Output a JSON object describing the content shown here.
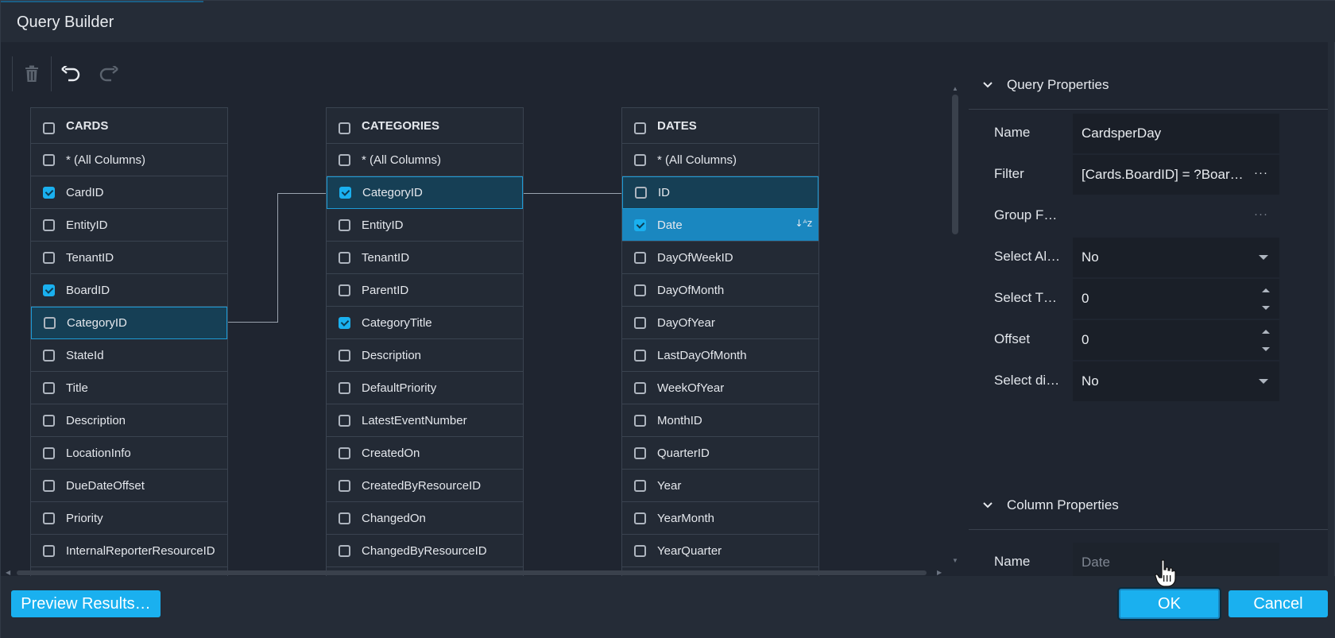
{
  "window": {
    "title": "Query Builder"
  },
  "toolbar": {
    "delete_icon": "trash-icon",
    "undo_icon": "undo-icon",
    "redo_icon": "redo-icon"
  },
  "tables": [
    {
      "name": "CARDS",
      "header_checked": false,
      "rows": [
        {
          "label": "* (All Columns)",
          "checked": false,
          "state": ""
        },
        {
          "label": "CardID",
          "checked": true,
          "state": ""
        },
        {
          "label": "EntityID",
          "checked": false,
          "state": ""
        },
        {
          "label": "TenantID",
          "checked": false,
          "state": ""
        },
        {
          "label": "BoardID",
          "checked": true,
          "state": ""
        },
        {
          "label": "CategoryID",
          "checked": false,
          "state": "selected"
        },
        {
          "label": "StateId",
          "checked": false,
          "state": ""
        },
        {
          "label": "Title",
          "checked": false,
          "state": ""
        },
        {
          "label": "Description",
          "checked": false,
          "state": ""
        },
        {
          "label": "LocationInfo",
          "checked": false,
          "state": ""
        },
        {
          "label": "DueDateOffset",
          "checked": false,
          "state": ""
        },
        {
          "label": "Priority",
          "checked": false,
          "state": ""
        },
        {
          "label": "InternalReporterResourceID",
          "checked": false,
          "state": ""
        }
      ]
    },
    {
      "name": "CATEGORIES",
      "header_checked": false,
      "rows": [
        {
          "label": "* (All Columns)",
          "checked": false,
          "state": ""
        },
        {
          "label": "CategoryID",
          "checked": true,
          "state": "selected"
        },
        {
          "label": "EntityID",
          "checked": false,
          "state": ""
        },
        {
          "label": "TenantID",
          "checked": false,
          "state": ""
        },
        {
          "label": "ParentID",
          "checked": false,
          "state": ""
        },
        {
          "label": "CategoryTitle",
          "checked": true,
          "state": ""
        },
        {
          "label": "Description",
          "checked": false,
          "state": ""
        },
        {
          "label": "DefaultPriority",
          "checked": false,
          "state": ""
        },
        {
          "label": "LatestEventNumber",
          "checked": false,
          "state": ""
        },
        {
          "label": "CreatedOn",
          "checked": false,
          "state": ""
        },
        {
          "label": "CreatedByResourceID",
          "checked": false,
          "state": ""
        },
        {
          "label": "ChangedOn",
          "checked": false,
          "state": ""
        },
        {
          "label": "ChangedByResourceID",
          "checked": false,
          "state": ""
        }
      ]
    },
    {
      "name": "DATES",
      "header_checked": false,
      "rows": [
        {
          "label": "* (All Columns)",
          "checked": false,
          "state": ""
        },
        {
          "label": "ID",
          "checked": false,
          "state": "selected"
        },
        {
          "label": "Date",
          "checked": true,
          "state": "highlight",
          "sort_icon": "sort-ascending-icon"
        },
        {
          "label": "DayOfWeekID",
          "checked": false,
          "state": ""
        },
        {
          "label": "DayOfMonth",
          "checked": false,
          "state": ""
        },
        {
          "label": "DayOfYear",
          "checked": false,
          "state": ""
        },
        {
          "label": "LastDayOfMonth",
          "checked": false,
          "state": ""
        },
        {
          "label": "WeekOfYear",
          "checked": false,
          "state": ""
        },
        {
          "label": "MonthID",
          "checked": false,
          "state": ""
        },
        {
          "label": "QuarterID",
          "checked": false,
          "state": ""
        },
        {
          "label": "Year",
          "checked": false,
          "state": ""
        },
        {
          "label": "YearMonth",
          "checked": false,
          "state": ""
        },
        {
          "label": "YearQuarter",
          "checked": false,
          "state": ""
        }
      ]
    }
  ],
  "query_properties": {
    "title": "Query Properties",
    "items": [
      {
        "label": "Name",
        "value": "CardsperDay",
        "control": "text"
      },
      {
        "label": "Filter",
        "value": "[Cards.BoardID] = ?Boar…",
        "control": "ellipsis"
      },
      {
        "label": "Group F…",
        "value": "",
        "control": "ellipsis-empty"
      },
      {
        "label": "Select Al…",
        "value": "No",
        "control": "dropdown"
      },
      {
        "label": "Select T…",
        "value": "0",
        "control": "spinner"
      },
      {
        "label": "Offset",
        "value": "0",
        "control": "spinner"
      },
      {
        "label": "Select di…",
        "value": "No",
        "control": "dropdown"
      }
    ]
  },
  "column_properties": {
    "title": "Column Properties",
    "items": [
      {
        "label": "Name",
        "value": "Date",
        "control": "readonly"
      }
    ]
  },
  "footer": {
    "preview_label": "Preview Results…",
    "ok_label": "OK",
    "cancel_label": "Cancel"
  },
  "colors": {
    "accent": "#1ab0ef",
    "background": "#1f2530",
    "selected_row": "#163f55",
    "highlight_row": "#1a87c0"
  }
}
